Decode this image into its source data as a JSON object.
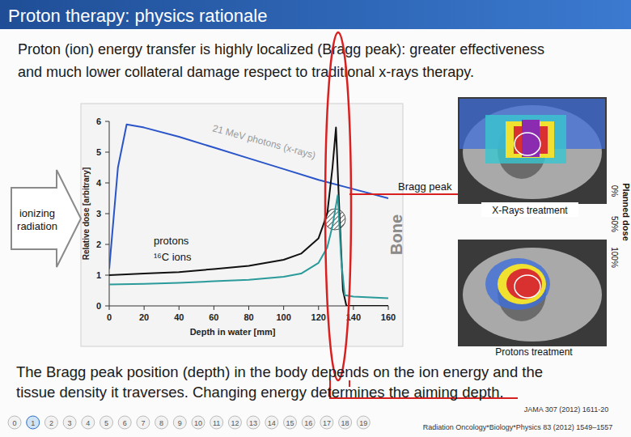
{
  "slide": {
    "title": "Proton therapy: physics rationale",
    "subtitle_lines": [
      "Proton (ion) energy transfer is highly localized (Bragg peak): greater effectiveness",
      "and much lower collateral damage respect to traditional x-rays therapy."
    ],
    "arrow_label_lines": [
      "ionizing",
      "radiation"
    ],
    "bone_label": "Bone",
    "bragg_label": "Bragg peak",
    "images": [
      {
        "label": "X-Rays treatment"
      },
      {
        "label": "Protons treatment"
      }
    ],
    "dose_bar": {
      "title": "Planned dose",
      "ticks": [
        {
          "value": 0,
          "label": "0%"
        },
        {
          "value": 50,
          "label": "50%"
        },
        {
          "value": 100,
          "label": "100%"
        }
      ]
    },
    "body_lines": [
      "The Bragg peak position (depth) in the body depends on the ion energy and the",
      "tissue density it traverses. Changing energy determines the aiming depth."
    ],
    "references": [
      "JAMA 307 (2012) 1611-20",
      "Radiation Oncology*Biology*Physics 83 (2012) 1549–1557"
    ],
    "pages": [
      0,
      1,
      2,
      3,
      4,
      5,
      6,
      7,
      8,
      9,
      10,
      11,
      12,
      13,
      14,
      15,
      16,
      17,
      18,
      19
    ],
    "current_page": 1
  },
  "chart_data": {
    "type": "line",
    "x_label": "Depth in water [mm]",
    "y_label": "Relative dose [arbitrary]",
    "xlim": [
      0,
      160
    ],
    "ylim": [
      0,
      6
    ],
    "xticks": [
      0,
      20,
      40,
      60,
      80,
      100,
      120,
      140,
      160
    ],
    "yticks": [
      0,
      1,
      2,
      3,
      4,
      5,
      6
    ],
    "series": [
      {
        "name": "21 MeV photons (x-rays)",
        "color": "#2a55c9",
        "x": [
          0,
          5,
          10,
          20,
          40,
          60,
          80,
          100,
          120,
          140,
          160
        ],
        "values": [
          1.2,
          4.5,
          5.9,
          5.8,
          5.5,
          5.15,
          4.8,
          4.45,
          4.1,
          3.8,
          3.5
        ]
      },
      {
        "name": "protons",
        "color": "#111111",
        "x": [
          0,
          20,
          40,
          60,
          80,
          100,
          110,
          120,
          125,
          128,
          130,
          132,
          134,
          136,
          160
        ],
        "values": [
          1.0,
          1.05,
          1.1,
          1.2,
          1.3,
          1.5,
          1.7,
          2.2,
          3.0,
          4.5,
          5.8,
          3.0,
          0.5,
          0.0,
          0.0
        ]
      },
      {
        "name": "¹⁶C ions",
        "color": "#2a9a9a",
        "x": [
          0,
          20,
          40,
          60,
          80,
          100,
          110,
          120,
          125,
          128,
          131,
          133,
          135,
          140,
          160
        ],
        "values": [
          0.7,
          0.72,
          0.75,
          0.8,
          0.85,
          0.95,
          1.05,
          1.4,
          1.9,
          2.6,
          3.6,
          1.5,
          0.35,
          0.3,
          0.25
        ]
      }
    ]
  }
}
